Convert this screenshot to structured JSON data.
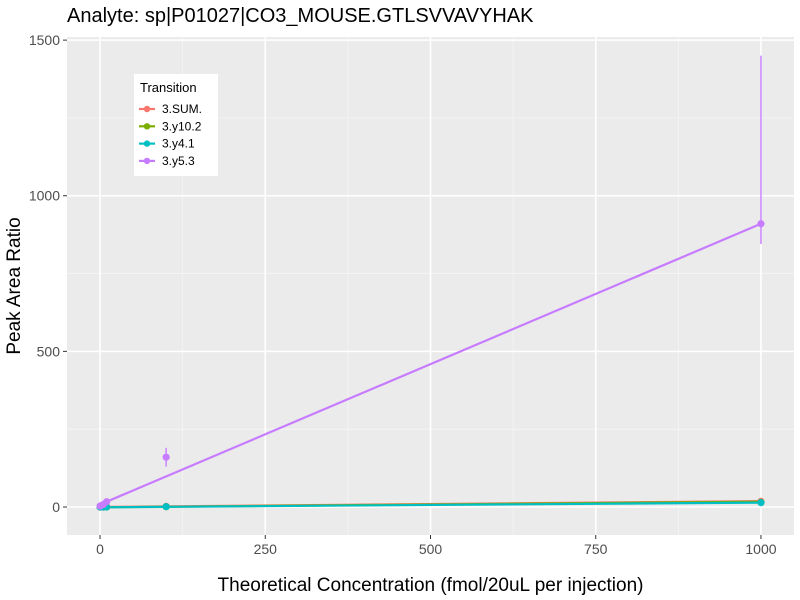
{
  "chart_data": {
    "type": "line",
    "title": "Analyte: sp|P01027|CO3_MOUSE.GTLSVVAVYHAK",
    "xlabel": "Theoretical Concentration (fmol/20uL per injection)",
    "ylabel": "Peak Area Ratio",
    "xlim": [
      -50,
      1050
    ],
    "ylim": [
      -90,
      1510
    ],
    "x_ticks": [
      0,
      250,
      500,
      750,
      1000
    ],
    "x_tick_labels": [
      "0",
      "250",
      "500",
      "750",
      "1000"
    ],
    "y_ticks": [
      0,
      500,
      1000,
      1500
    ],
    "y_tick_labels": [
      "0",
      "500",
      "1000",
      "1500"
    ],
    "grid": true,
    "legend": {
      "title": "Transition",
      "position": "top-left"
    },
    "series": [
      {
        "name": "3.SUM.",
        "color": "#F8766D",
        "points": [
          {
            "x": 0,
            "y": 0
          },
          {
            "x": 1,
            "y": 0
          },
          {
            "x": 5,
            "y": 0
          },
          {
            "x": 10,
            "y": 1
          },
          {
            "x": 100,
            "y": 2
          },
          {
            "x": 1000,
            "y": 18
          }
        ],
        "fit": [
          [
            0,
            0
          ],
          [
            1000,
            19
          ]
        ],
        "error_bars": []
      },
      {
        "name": "3.y10.2",
        "color": "#7CAE00",
        "points": [
          {
            "x": 0,
            "y": 0
          },
          {
            "x": 1,
            "y": 0
          },
          {
            "x": 5,
            "y": 0
          },
          {
            "x": 10,
            "y": 0
          },
          {
            "x": 100,
            "y": 1
          },
          {
            "x": 1000,
            "y": 15
          }
        ],
        "fit": [
          [
            0,
            -1
          ],
          [
            1000,
            17
          ]
        ],
        "error_bars": []
      },
      {
        "name": "3.y4.1",
        "color": "#00BFC4",
        "points": [
          {
            "x": 0,
            "y": 0
          },
          {
            "x": 1,
            "y": 0
          },
          {
            "x": 5,
            "y": 0
          },
          {
            "x": 10,
            "y": 0
          },
          {
            "x": 100,
            "y": 1
          },
          {
            "x": 1000,
            "y": 14
          }
        ],
        "fit": [
          [
            0,
            -1
          ],
          [
            1000,
            14
          ]
        ],
        "error_bars": []
      },
      {
        "name": "3.y5.3",
        "color": "#C77CFF",
        "points": [
          {
            "x": 0,
            "y": 3
          },
          {
            "x": 1,
            "y": 4
          },
          {
            "x": 5,
            "y": 8
          },
          {
            "x": 10,
            "y": 17
          },
          {
            "x": 100,
            "y": 160
          },
          {
            "x": 1000,
            "y": 910
          }
        ],
        "fit": [
          [
            10,
            17
          ],
          [
            1000,
            910
          ]
        ],
        "error_bars": [
          {
            "x": 100,
            "low": 130,
            "high": 190
          },
          {
            "x": 1000,
            "low": 845,
            "high": 1450
          }
        ]
      }
    ]
  }
}
